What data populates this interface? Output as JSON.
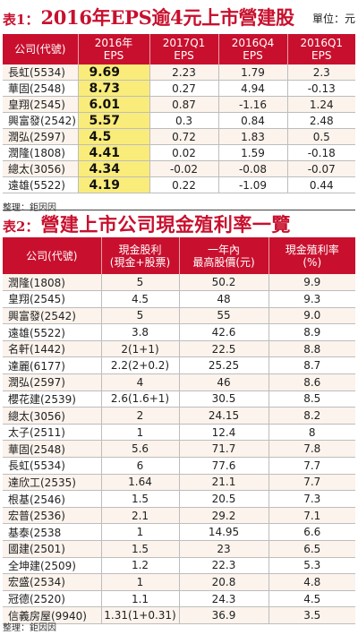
{
  "table1": {
    "prefix": "表1：",
    "title": "2016年EPS逾4元上市營建股",
    "unit": "單位：元",
    "headers": [
      "公司(代號)",
      "2016年\nEPS",
      "2017Q1\nEPS",
      "2016Q4\nEPS",
      "2016Q1\nEPS"
    ],
    "rows": [
      [
        "長虹(5534)",
        "9.69",
        "2.23",
        "1.79",
        "2.3"
      ],
      [
        "華固(2548)",
        "8.73",
        "0.27",
        "4.94",
        "-0.13"
      ],
      [
        "皇翔(2545)",
        "6.01",
        "0.87",
        "-1.16",
        "1.24"
      ],
      [
        "興富發(2542)",
        "5.57",
        "0.3",
        "0.84",
        "2.48"
      ],
      [
        "潤弘(2597)",
        "4.5",
        "0.72",
        "1.83",
        "0.5"
      ],
      [
        "潤隆(1808)",
        "4.41",
        "0.02",
        "1.59",
        "-0.18"
      ],
      [
        "總太(3056)",
        "4.34",
        "-0.02",
        "-0.08",
        "-0.07"
      ],
      [
        "遠雄(5522)",
        "4.19",
        "0.22",
        "-1.09",
        "0.44"
      ]
    ],
    "source": "整理：鉅因因"
  },
  "table2": {
    "prefix": "表2：",
    "title": "營建上市公司現金殖利率一覽",
    "headers": [
      "公司(代號)",
      "現金股利\n(現金+股票)",
      "一年內\n最高股價(元)",
      "現金殖利率\n(%)"
    ],
    "rows": [
      [
        "潤隆(1808)",
        "5",
        "50.2",
        "9.9"
      ],
      [
        "皇翔(2545)",
        "4.5",
        "48",
        "9.3"
      ],
      [
        "興富發(2542)",
        "5",
        "55",
        "9.0"
      ],
      [
        "遠雄(5522)",
        "3.8",
        "42.6",
        "8.9"
      ],
      [
        "名軒(1442)",
        "2(1+1)",
        "22.5",
        "8.8"
      ],
      [
        "達麗(6177)",
        "2.2(2+0.2)",
        "25.25",
        "8.7"
      ],
      [
        "潤弘(2597)",
        "4",
        "46",
        "8.6"
      ],
      [
        "櫻花建(2539)",
        "2.6(1.6+1)",
        "30.5",
        "8.5"
      ],
      [
        "總太(3056)",
        "2",
        "24.15",
        "8.2"
      ],
      [
        "太子(2511)",
        "1",
        "12.4",
        "8"
      ],
      [
        "華固(2548)",
        "5.6",
        "71.7",
        "7.8"
      ],
      [
        "長虹(5534)",
        "6",
        "77.6",
        "7.7"
      ],
      [
        "達欣工(2535)",
        "1.64",
        "21.1",
        "7.7"
      ],
      [
        "根基(2546)",
        "1.5",
        "20.5",
        "7.3"
      ],
      [
        "宏普(2536)",
        "2.1",
        "29.2",
        "7.1"
      ],
      [
        "基泰(2538",
        "1",
        "14.95",
        "6.6"
      ],
      [
        "國建(2501)",
        "1.5",
        "23",
        "6.5"
      ],
      [
        "全坤建(2509)",
        "1.2",
        "22.3",
        "5.3"
      ],
      [
        "宏盛(2534)",
        "1",
        "20.8",
        "4.8"
      ],
      [
        "冠德(2520)",
        "1.1",
        "24.3",
        "4.5"
      ],
      [
        "信義房屋(9940)",
        "1.31(1+0.31)",
        "36.9",
        "3.5"
      ]
    ],
    "source": "整理：鉅因因"
  }
}
